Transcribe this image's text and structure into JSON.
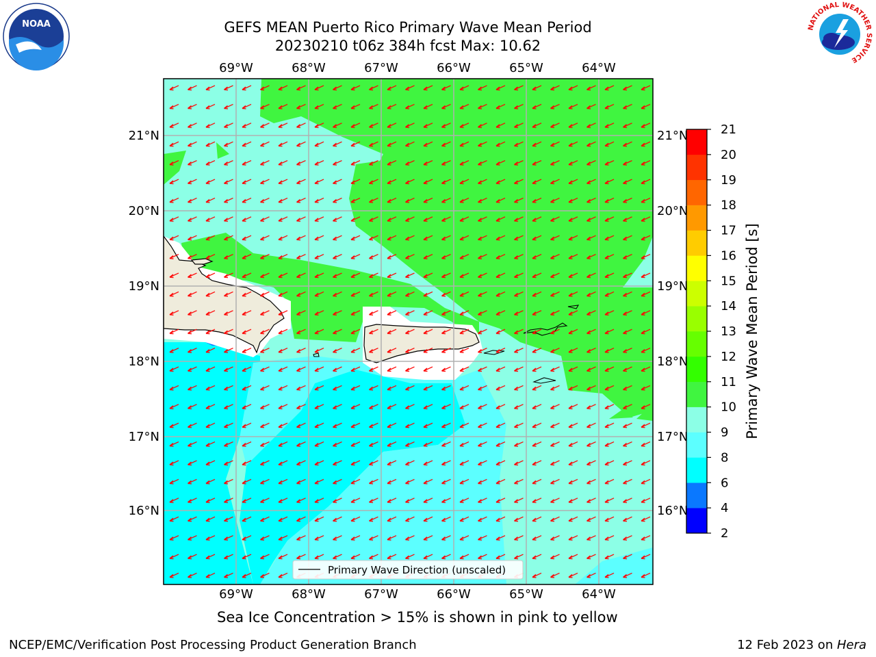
{
  "title": {
    "line1": "GEFS MEAN Puerto Rico Primary Wave Mean Period",
    "line2": "20230210 t06z 384h fcst   Max: 10.62"
  },
  "logos": {
    "left": "NOAA",
    "right_ring": "NATIONAL WEATHER SERVICE"
  },
  "map": {
    "lon_ticks": [
      "69°W",
      "68°W",
      "67°W",
      "66°W",
      "65°W",
      "64°W"
    ],
    "lat_ticks": [
      "21°N",
      "20°N",
      "19°N",
      "18°N",
      "17°N",
      "16°N"
    ],
    "lon_range": [
      -70,
      -63.25
    ],
    "lat_range": [
      15,
      21.75
    ],
    "vector_direction": "west-southwest",
    "legend_label": "Primary Wave Direction (unscaled)"
  },
  "colorbar": {
    "label": "Primary Wave Mean Period [s]",
    "ticks": [
      "2",
      "4",
      "6",
      "8",
      "9",
      "10",
      "11",
      "12",
      "13",
      "14",
      "15",
      "16",
      "17",
      "18",
      "19",
      "20",
      "21"
    ],
    "colors": [
      "#0000ff",
      "#0a78ff",
      "#00ffff",
      "#5cffff",
      "#8cffe6",
      "#40f540",
      "#33ff00",
      "#66ff00",
      "#99ff00",
      "#ccff00",
      "#ffff00",
      "#ffcc00",
      "#ff9900",
      "#ff6600",
      "#ff3300",
      "#ff0000"
    ]
  },
  "note": "Sea Ice Concentration > 15% is shown in pink to yellow",
  "footer": {
    "left": "NCEP/EMC/Verification Post Processing Product Generation Branch",
    "right_prefix": "12 Feb 2023 on ",
    "right_host": "Hera"
  }
}
